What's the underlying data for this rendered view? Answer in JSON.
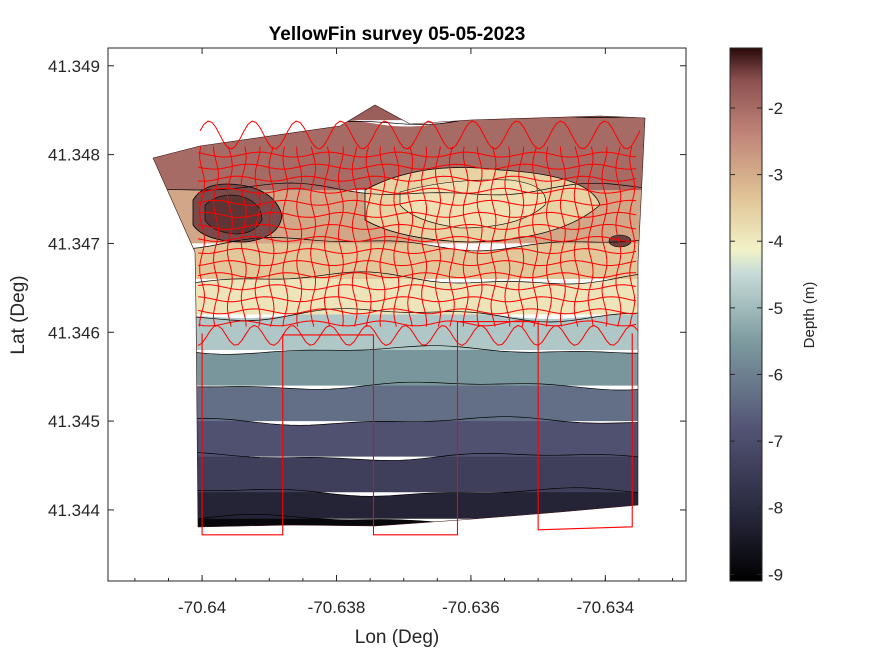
{
  "chart_data": {
    "type": "heatmap",
    "subtype": "filled-contour-map",
    "title": "YellowFin survey 05-05-2023",
    "xlabel": "Lon (Deg)",
    "ylabel": "Lat (Deg)",
    "xlim": [
      -70.6414,
      -70.6328
    ],
    "ylim": [
      41.3432,
      41.3492
    ],
    "xticks": [
      -70.64,
      -70.638,
      -70.636,
      -70.634
    ],
    "xtick_labels": [
      "-70.64",
      "-70.638",
      "-70.636",
      "-70.634"
    ],
    "yticks": [
      41.344,
      41.345,
      41.346,
      41.347,
      41.348,
      41.349
    ],
    "ytick_labels": [
      "41.344",
      "41.345",
      "41.346",
      "41.347",
      "41.348",
      "41.349"
    ],
    "colorbar": {
      "label": "Depth (m)",
      "range": [
        -9.1,
        -1.1
      ],
      "ticks": [
        -2,
        -3,
        -4,
        -5,
        -6,
        -7,
        -8,
        -9
      ],
      "tick_labels": [
        "-2",
        "-3",
        "-4",
        "-5",
        "-6",
        "-7",
        "-8",
        "-9"
      ]
    },
    "depth_bands": [
      {
        "lat_max": 41.3484,
        "depth": -2.0
      },
      {
        "lat_max": 41.3476,
        "depth": -2.9
      },
      {
        "lat_max": 41.347,
        "depth": -3.4
      },
      {
        "lat_max": 41.3466,
        "depth": -3.9
      },
      {
        "lat_max": 41.3462,
        "depth": -4.8
      },
      {
        "lat_max": 41.3458,
        "depth": -5.6
      },
      {
        "lat_max": 41.3454,
        "depth": -6.3
      },
      {
        "lat_max": 41.345,
        "depth": -6.9
      },
      {
        "lat_max": 41.3446,
        "depth": -7.4
      },
      {
        "lat_max": 41.3442,
        "depth": -8.2
      },
      {
        "lat_max": 41.3439,
        "depth": -8.9
      }
    ],
    "survey_track": {
      "color": "#ff0000",
      "grid_lon_range": [
        -70.64,
        -70.6336
      ],
      "grid_lat_range": [
        41.3461,
        41.348
      ],
      "grid_lon_lines": 32,
      "grid_lat_lines": 15,
      "transect_lons": [
        -70.64,
        -70.6388,
        -70.63745,
        -70.6362,
        -70.635,
        -70.6336
      ]
    },
    "grid": false,
    "legend": "colorbar-right"
  }
}
